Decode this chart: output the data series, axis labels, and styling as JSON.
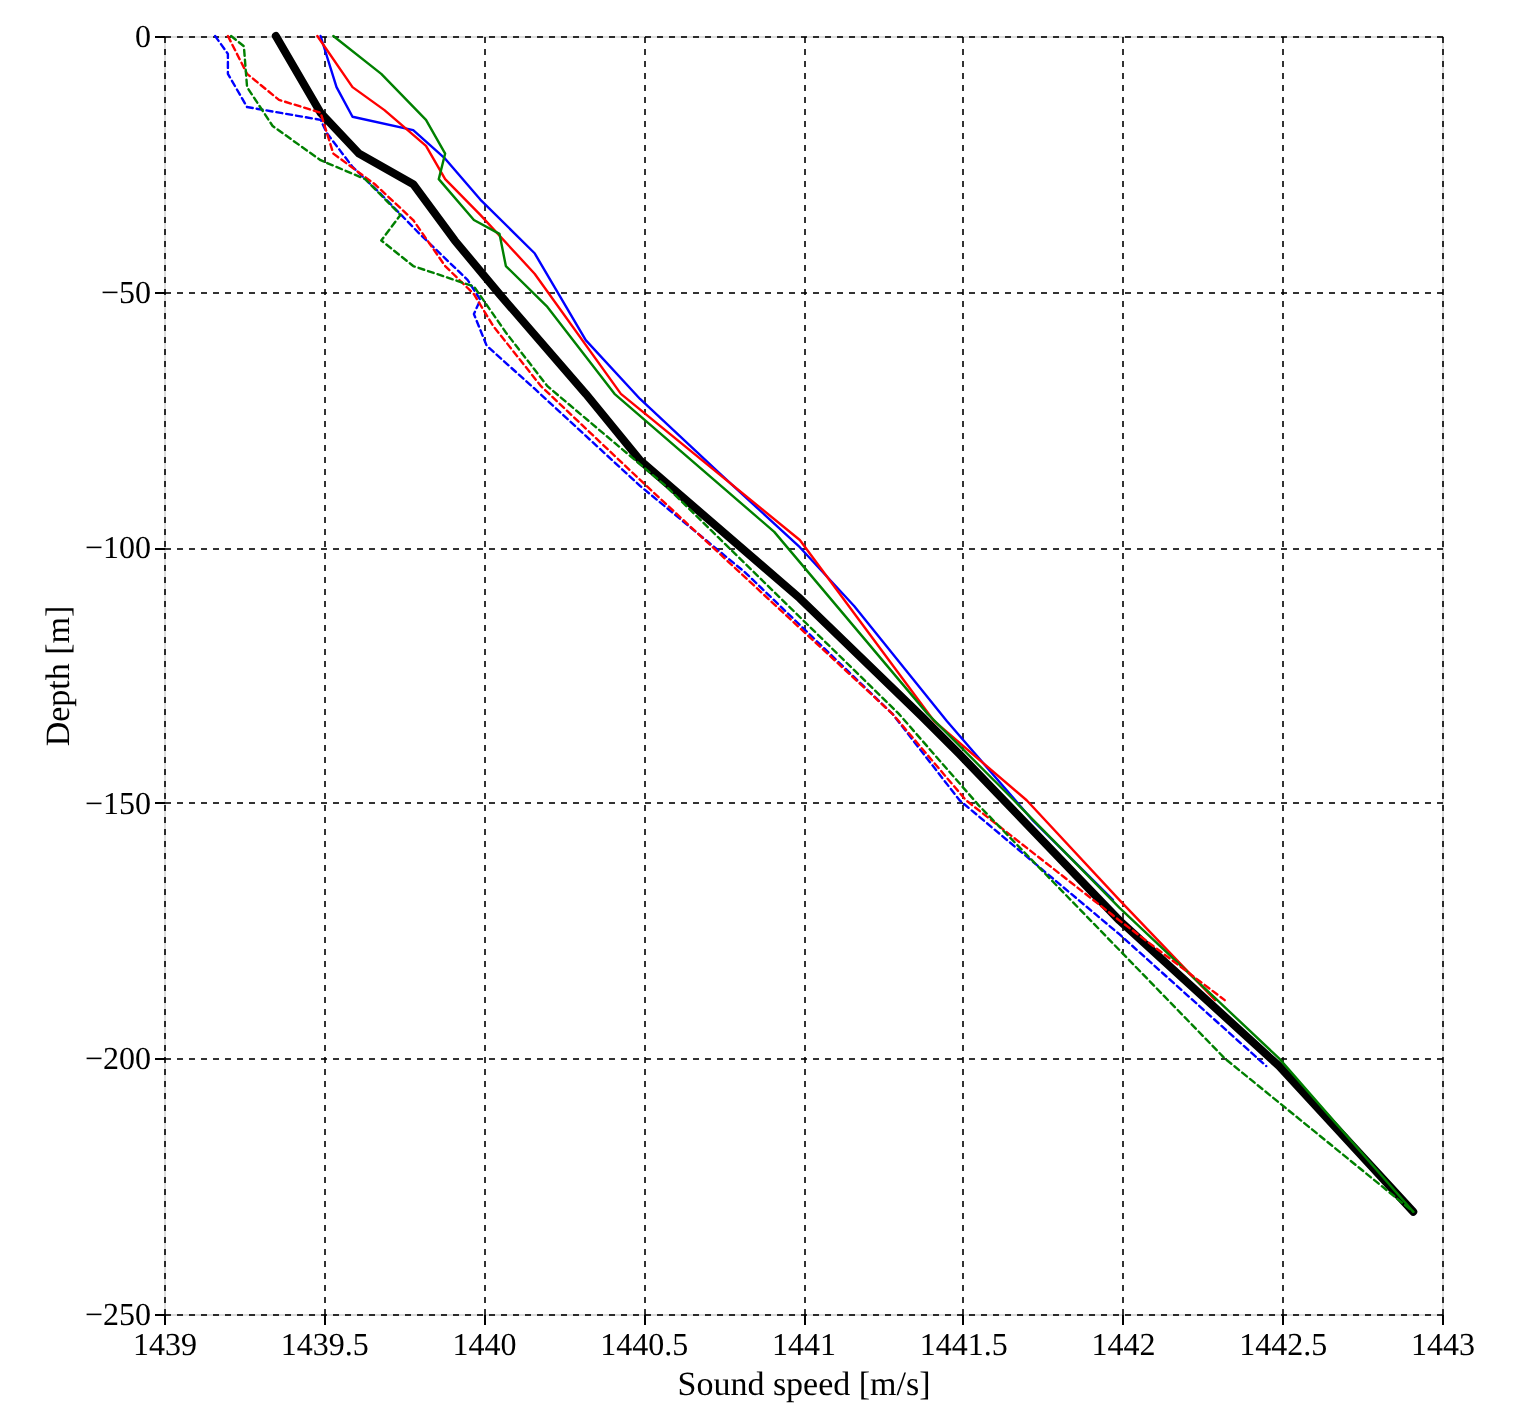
{
  "chart_data": {
    "type": "line",
    "xlabel": "Sound speed [m/s]",
    "ylabel": "Depth [m]",
    "xlim": [
      1439,
      1443
    ],
    "xticks": [
      1439,
      1439.5,
      1440,
      1440.5,
      1441,
      1441.5,
      1442,
      1442.5,
      1443
    ],
    "ylim": [
      -250,
      0
    ],
    "yticks": [
      -250,
      -200,
      -150,
      -100,
      -50,
      0
    ],
    "grid": true,
    "series": [
      {
        "color": "#0000ff",
        "line_style": "solid",
        "x": [
          1439.49,
          1439.54,
          1439.59,
          1439.78,
          1439.88,
          1439.99,
          1440.16,
          1440.32,
          1440.49,
          1440.74,
          1440.99,
          1441.16,
          1441.45,
          1441.72,
          1441.97
        ],
        "values": [
          0,
          -10,
          -15.8,
          -18.4,
          -24,
          -32,
          -42.5,
          -59.5,
          -71,
          -85.6,
          -100,
          -111.5,
          -134,
          -153.5,
          -169
        ]
      },
      {
        "color": "#ff0000",
        "line_style": "solid",
        "x": [
          1439.48,
          1439.59,
          1439.69,
          1439.82,
          1439.88,
          1439.99,
          1440.16,
          1440.43,
          1440.99,
          1441.41,
          1441.7,
          1441.99,
          1442.29
        ],
        "values": [
          0,
          -10,
          -14.5,
          -21.5,
          -28,
          -35,
          -46.5,
          -70,
          -98.6,
          -134,
          -149.5,
          -169,
          -188.6
        ]
      },
      {
        "color": "#008000",
        "line_style": "solid",
        "x": [
          1439.53,
          1439.68,
          1439.82,
          1439.88,
          1439.86,
          1439.97,
          1440.05,
          1440.07,
          1440.2,
          1440.41,
          1440.91,
          1441.39,
          1441.66,
          1441.99,
          1442.49,
          1442.91
        ],
        "values": [
          0,
          -7.4,
          -16.4,
          -23,
          -28,
          -36,
          -38.7,
          -45,
          -53,
          -70,
          -97,
          -132.6,
          -149.5,
          -170.5,
          -200,
          -230
        ]
      },
      {
        "color": "#0000ff",
        "line_style": "dashed",
        "x": [
          1439.16,
          1439.2,
          1439.2,
          1439.26,
          1439.49,
          1439.51,
          1439.59,
          1439.68,
          1439.8,
          1439.95,
          1439.99,
          1439.97,
          1440.01,
          1440.16,
          1440.49,
          1440.82,
          1441.28,
          1441.49,
          1441.99,
          1442.45
        ],
        "values": [
          0,
          -3.5,
          -7.4,
          -13.9,
          -16.4,
          -19,
          -25.6,
          -31,
          -38.7,
          -47.7,
          -51.6,
          -54.4,
          -60.6,
          -69,
          -88,
          -105,
          -132.6,
          -149.5,
          -175.7,
          -201.5
        ]
      },
      {
        "color": "#ff0000",
        "line_style": "dashed",
        "x": [
          1439.2,
          1439.26,
          1439.36,
          1439.49,
          1439.53,
          1439.66,
          1439.78,
          1439.88,
          1439.97,
          1440.03,
          1440.18,
          1440.51,
          1441.28,
          1441.51,
          1441.99,
          1442.32
        ],
        "values": [
          0,
          -7.4,
          -12.5,
          -15,
          -23,
          -29,
          -36,
          -45,
          -50.5,
          -56.7,
          -68.5,
          -88,
          -132.6,
          -149.5,
          -173,
          -188.6
        ]
      },
      {
        "color": "#008000",
        "line_style": "dashed",
        "x": [
          1439.21,
          1439.25,
          1439.26,
          1439.34,
          1439.49,
          1439.63,
          1439.74,
          1439.68,
          1439.78,
          1439.97,
          1440.07,
          1440.2,
          1440.57,
          1441.3,
          1441.55,
          1442.32,
          1442.91
        ],
        "values": [
          0,
          -2,
          -10,
          -17.6,
          -24.3,
          -28,
          -35,
          -40,
          -45,
          -49,
          -58,
          -68.5,
          -88,
          -132.6,
          -150.5,
          -200,
          -230
        ]
      },
      {
        "color": "#000000",
        "line_style": "solid",
        "x": [
          1439.35,
          1439.49,
          1439.61,
          1439.78,
          1439.91,
          1440.05,
          1440.32,
          1440.49,
          1440.99,
          1441.37,
          1441.49,
          1441.99,
          1442.49,
          1442.91
        ],
        "values": [
          0,
          -15,
          -23,
          -29,
          -40,
          -50.5,
          -70,
          -83,
          -110,
          -133,
          -140.5,
          -173,
          -201.5,
          -230
        ]
      }
    ]
  }
}
